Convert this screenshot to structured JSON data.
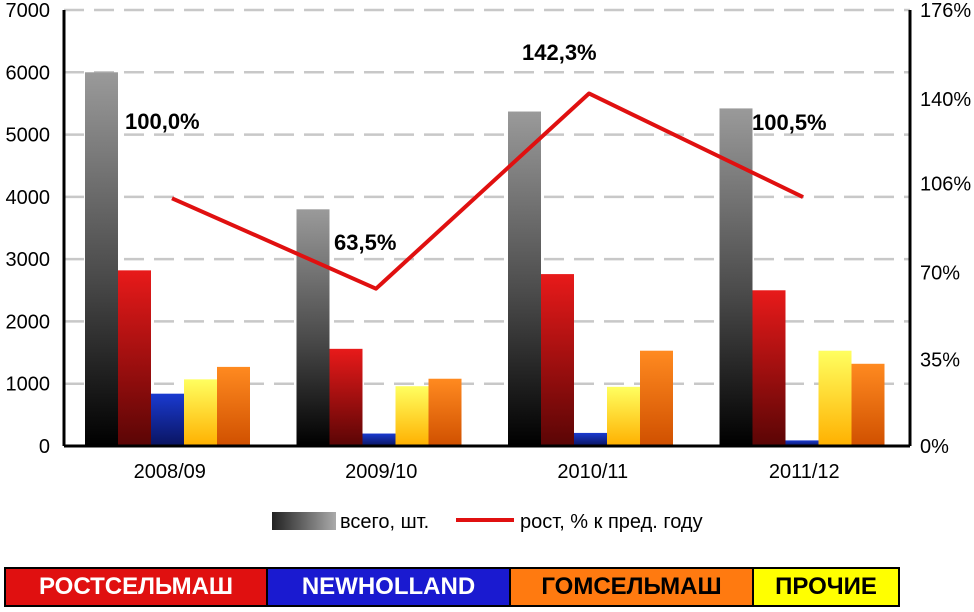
{
  "chart_data": {
    "type": "bar",
    "categories": [
      "2008/09",
      "2009/10",
      "2010/11",
      "2011/12"
    ],
    "series": [
      {
        "name": "всего, шт.",
        "values": [
          6000,
          3800,
          5370,
          5420
        ],
        "color": "#6e6e6e"
      },
      {
        "name": "РОСТСЕЛЬМАШ",
        "values": [
          2820,
          1560,
          2760,
          2500
        ],
        "color": "#d41010"
      },
      {
        "name": "NEWHOLLAND",
        "values": [
          840,
          200,
          210,
          90
        ],
        "color": "#1630b0"
      },
      {
        "name": "ПРОЧИЕ",
        "values": [
          1070,
          960,
          950,
          1530
        ],
        "color": "#ffe81a"
      },
      {
        "name": "ГОМСЕЛЬМАШ",
        "values": [
          1270,
          1080,
          1530,
          1320
        ],
        "color": "#ff7a10"
      }
    ],
    "line": {
      "name": "рост, % к пред. году",
      "values": [
        100.0,
        63.5,
        142.3,
        100.5
      ],
      "color": "#e01010"
    },
    "point_labels": [
      "100,0%",
      "63,5%",
      "142,3%",
      "100,5%"
    ],
    "y_left": {
      "ticks": [
        "0",
        "1000",
        "2000",
        "3000",
        "4000",
        "5000",
        "6000",
        "7000"
      ],
      "ylim": [
        0,
        7000
      ]
    },
    "y_right": {
      "ticks": [
        "0%",
        "35%",
        "70%",
        "106%",
        "140%",
        "176%"
      ],
      "ylim": [
        0,
        176
      ]
    },
    "grid": true,
    "legend": [
      {
        "label": "всего, шт.",
        "kind": "bar"
      },
      {
        "label": "рост, % к пред. году",
        "kind": "line"
      }
    ]
  },
  "brand_legend": [
    {
      "label": "РОСТСЕЛЬМАШ",
      "bg": "#e01010",
      "fg": "#ffffff"
    },
    {
      "label": "NEWHOLLAND",
      "bg": "#1a1ad0",
      "fg": "#ffffff"
    },
    {
      "label": "ГОМСЕЛЬМАШ",
      "bg": "#ff7a10",
      "fg": "#000000"
    },
    {
      "label": "ПРОЧИЕ",
      "bg": "#ffff00",
      "fg": "#000000"
    }
  ]
}
